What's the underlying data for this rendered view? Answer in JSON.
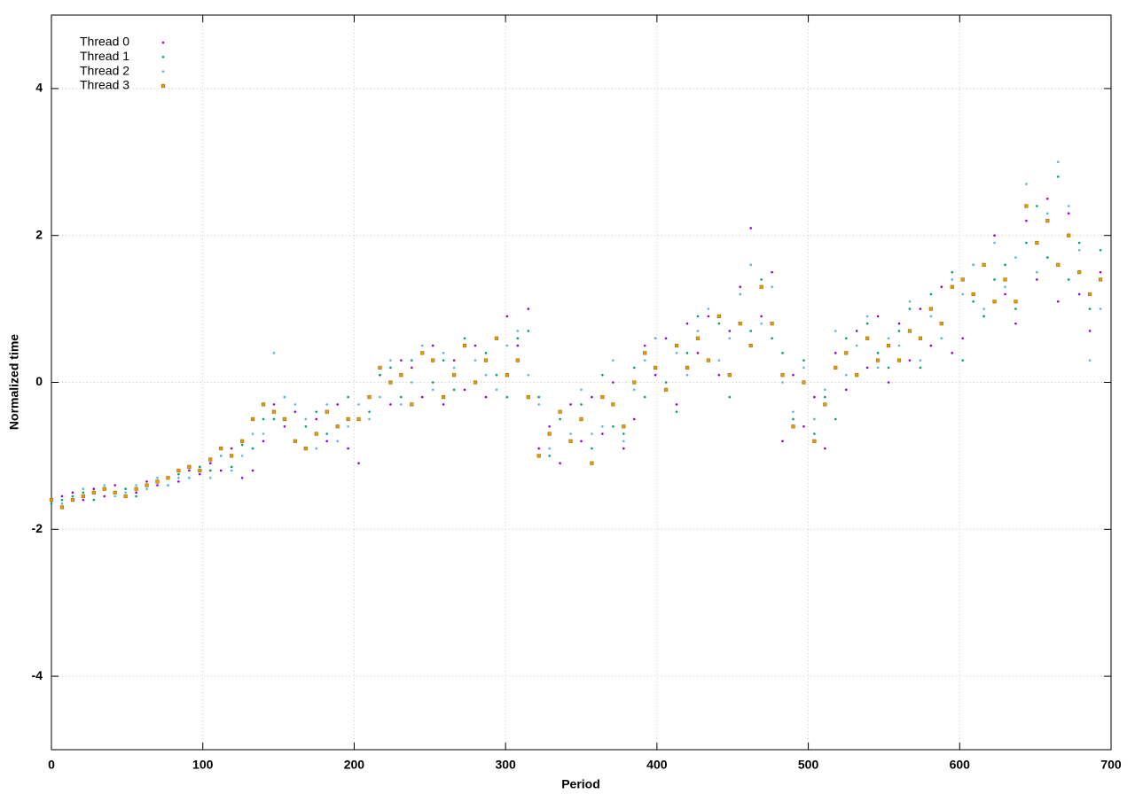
{
  "chart_data": {
    "type": "scatter",
    "xlabel": "Period",
    "ylabel": "Normalized time",
    "xlim": [
      0,
      700
    ],
    "ylim": [
      -5,
      5
    ],
    "xticks": [
      0,
      100,
      200,
      300,
      400,
      500,
      600,
      700
    ],
    "yticks": [
      -4,
      -2,
      0,
      2,
      4
    ],
    "grid": true,
    "legend": "top-left",
    "x": [
      0,
      7,
      14,
      21,
      28,
      35,
      42,
      49,
      56,
      63,
      70,
      77,
      84,
      91,
      98,
      105,
      112,
      119,
      126,
      133,
      140,
      147,
      154,
      161,
      168,
      175,
      182,
      189,
      196,
      203,
      210,
      217,
      224,
      231,
      238,
      245,
      252,
      259,
      266,
      273,
      280,
      287,
      294,
      301,
      308,
      315,
      322,
      329,
      336,
      343,
      350,
      357,
      364,
      371,
      378,
      385,
      392,
      399,
      406,
      413,
      420,
      427,
      434,
      441,
      448,
      455,
      462,
      469,
      476,
      483,
      490,
      497,
      504,
      511,
      518,
      525,
      532,
      539,
      546,
      553,
      560,
      567,
      574,
      581,
      588,
      595,
      602,
      609,
      616,
      623,
      630,
      637,
      644,
      651,
      658,
      665,
      672,
      679,
      686,
      693
    ],
    "series": [
      {
        "name": "Thread 0",
        "color": "#9400d3",
        "values": [
          -1.6,
          -1.55,
          -1.5,
          -1.6,
          -1.45,
          -1.55,
          -1.4,
          -1.55,
          -1.5,
          -1.35,
          -1.4,
          -1.3,
          -1.35,
          -1.2,
          -1.25,
          -1.1,
          -1.2,
          -0.9,
          -1.3,
          -1.2,
          -0.8,
          -0.3,
          -0.6,
          -0.4,
          -0.9,
          -0.5,
          -0.8,
          -0.3,
          -0.9,
          -1.1,
          -0.2,
          0.1,
          -0.3,
          0.3,
          0.2,
          -0.2,
          0.5,
          -0.3,
          0.3,
          -0.1,
          0.5,
          -0.2,
          0.6,
          0.9,
          0.5,
          1.0,
          -0.9,
          -0.6,
          -1.1,
          -0.3,
          -0.8,
          -0.2,
          -0.7,
          0.0,
          -0.9,
          -0.5,
          0.5,
          0.1,
          0.6,
          -0.3,
          0.8,
          0.4,
          0.9,
          0.1,
          0.7,
          1.3,
          2.1,
          0.9,
          1.5,
          -0.8,
          0.1,
          -0.6,
          -0.2,
          -0.9,
          0.4,
          -0.1,
          0.7,
          0.2,
          0.9,
          0.0,
          0.8,
          0.3,
          1.0,
          0.5,
          1.3,
          0.4,
          0.6,
          1.6,
          0.9,
          2.0,
          1.2,
          0.8,
          2.2,
          1.4,
          2.5,
          1.1,
          2.3,
          1.2,
          0.7,
          1.5
        ]
      },
      {
        "name": "Thread 1",
        "color": "#009e73",
        "values": [
          -1.65,
          -1.6,
          -1.55,
          -1.5,
          -1.6,
          -1.45,
          -1.5,
          -1.45,
          -1.55,
          -1.4,
          -1.35,
          -1.4,
          -1.25,
          -1.3,
          -1.15,
          -1.2,
          -1.0,
          -1.15,
          -0.85,
          -0.9,
          -0.5,
          -0.5,
          -0.2,
          -0.8,
          -0.6,
          -0.4,
          -0.7,
          -0.6,
          -0.2,
          -0.5,
          -0.4,
          0.1,
          0.2,
          -0.2,
          0.3,
          0.4,
          0.0,
          0.3,
          -0.1,
          0.6,
          0.0,
          0.4,
          0.1,
          -0.2,
          0.6,
          0.7,
          -0.2,
          -1.0,
          -0.5,
          -0.8,
          -0.3,
          -0.9,
          0.1,
          -0.6,
          -0.7,
          0.2,
          -0.2,
          0.6,
          0.0,
          -0.4,
          0.4,
          0.9,
          0.3,
          0.8,
          -0.2,
          1.2,
          0.7,
          1.4,
          0.6,
          0.4,
          -0.5,
          0.3,
          -0.7,
          -0.2,
          -0.5,
          0.6,
          0.1,
          0.8,
          0.4,
          0.2,
          0.7,
          1.0,
          0.2,
          1.2,
          0.6,
          1.5,
          0.3,
          1.1,
          0.9,
          1.4,
          1.6,
          1.0,
          1.9,
          2.4,
          1.7,
          2.8,
          1.4,
          1.9,
          1.0,
          1.8
        ]
      },
      {
        "name": "Thread 2",
        "color": "#56b4e9",
        "values": [
          -1.6,
          -1.65,
          -1.6,
          -1.45,
          -1.5,
          -1.4,
          -1.55,
          -1.5,
          -1.4,
          -1.45,
          -1.3,
          -1.4,
          -1.3,
          -1.3,
          -1.2,
          -1.3,
          -1.0,
          -1.2,
          -1.0,
          -0.7,
          -0.7,
          0.4,
          -0.2,
          -0.3,
          -0.5,
          -0.9,
          -0.3,
          -0.8,
          -0.6,
          -0.3,
          -0.5,
          -0.2,
          0.3,
          -0.3,
          0.0,
          0.5,
          -0.1,
          0.4,
          0.2,
          0.5,
          0.3,
          0.1,
          -0.1,
          0.5,
          0.7,
          0.1,
          -0.3,
          -0.9,
          -0.4,
          -0.7,
          -0.1,
          -0.7,
          -0.6,
          0.3,
          -0.8,
          -0.1,
          0.3,
          0.6,
          -0.1,
          0.4,
          0.1,
          0.7,
          1.0,
          0.3,
          0.6,
          1.2,
          1.6,
          0.8,
          1.3,
          0.0,
          -0.4,
          0.2,
          -0.5,
          -0.1,
          0.7,
          0.1,
          0.5,
          0.9,
          0.2,
          0.6,
          0.5,
          1.1,
          0.3,
          0.9,
          0.6,
          1.4,
          1.2,
          1.6,
          1.0,
          1.9,
          1.3,
          1.7,
          2.7,
          1.5,
          2.3,
          3.0,
          2.4,
          1.8,
          0.3,
          1.0
        ]
      },
      {
        "name": "Thread 3",
        "color": "#e69f00",
        "values": [
          -1.6,
          -1.7,
          -1.6,
          -1.55,
          -1.5,
          -1.45,
          -1.5,
          -1.55,
          -1.45,
          -1.4,
          -1.35,
          -1.3,
          -1.2,
          -1.15,
          -1.2,
          -1.05,
          -0.9,
          -1.0,
          -0.8,
          -0.5,
          -0.3,
          -0.4,
          -0.5,
          -0.8,
          -0.9,
          -0.7,
          -0.4,
          -0.6,
          -0.5,
          -0.5,
          -0.2,
          0.2,
          0.0,
          0.1,
          -0.3,
          0.4,
          0.3,
          -0.2,
          0.1,
          0.5,
          0.0,
          0.3,
          0.6,
          0.1,
          0.3,
          -0.2,
          -1.0,
          -0.7,
          -0.4,
          -0.8,
          -0.5,
          -1.1,
          -0.2,
          -0.3,
          -0.6,
          0.0,
          0.4,
          0.2,
          -0.1,
          0.5,
          0.2,
          0.6,
          0.3,
          0.9,
          0.1,
          0.8,
          0.5,
          1.3,
          0.8,
          0.1,
          -0.6,
          0.0,
          -0.8,
          -0.3,
          0.2,
          0.4,
          0.1,
          0.6,
          0.3,
          0.5,
          0.3,
          0.7,
          0.6,
          1.0,
          0.8,
          1.3,
          1.4,
          1.2,
          1.6,
          1.1,
          1.4,
          1.1,
          2.4,
          1.9,
          2.2,
          1.6,
          2.0,
          1.5,
          1.2,
          1.4
        ]
      }
    ]
  }
}
